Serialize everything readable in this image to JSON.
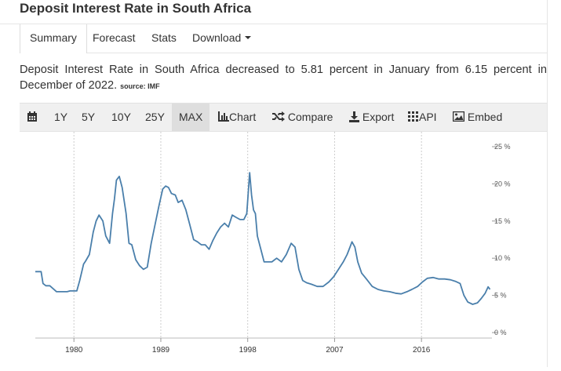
{
  "page": {
    "title": "Deposit Interest Rate in South Africa"
  },
  "tabs": [
    {
      "label": "Summary",
      "active": true
    },
    {
      "label": "Forecast",
      "active": false
    },
    {
      "label": "Stats",
      "active": false
    },
    {
      "label": "Download",
      "active": false
    }
  ],
  "summary": {
    "text": "Deposit Interest Rate in South Africa decreased to 5.81 percent in January from 6.15 percent in December of 2022.",
    "source": "source: IMF"
  },
  "toolbar": {
    "ranges": [
      "1Y",
      "5Y",
      "10Y",
      "25Y",
      "MAX"
    ],
    "active_range": "MAX",
    "chart_label": "Chart",
    "compare_label": "Compare",
    "export_label": "Export",
    "api_label": "API",
    "embed_label": "Embed"
  },
  "icons": [
    "calendar-icon",
    "bar-chart-icon",
    "shuffle-icon",
    "download-icon",
    "grid-icon",
    "image-icon"
  ],
  "colors": {
    "line": "#4a7fab",
    "toolbar_bg": "#f0f0f0",
    "active_bg": "#dedede",
    "grid": "#cccccc"
  },
  "chart_data": {
    "type": "line",
    "title": "",
    "xlabel": "",
    "ylabel": "",
    "ylim": [
      0,
      25
    ],
    "xlim": [
      1976.0,
      2023.3
    ],
    "y_ticks": [
      "25 %",
      "20 %",
      "15 %",
      "10 %",
      "5 %",
      "0 %"
    ],
    "x_ticks": [
      "1980",
      "1989",
      "1998",
      "2007",
      "2016"
    ],
    "grid": "vertical lines at x ticks",
    "series": [
      {
        "x": [
          1976.0,
          1976.6,
          1976.8,
          1977.1,
          1977.5,
          1978.2,
          1978.6,
          1979.3,
          1979.6,
          1980.0,
          1980.3,
          1980.6,
          1981.0,
          1981.2,
          1981.6,
          1982.0,
          1982.3,
          1982.6,
          1983.0,
          1983.3,
          1983.7,
          1984.0,
          1984.2,
          1984.4,
          1984.7,
          1985.0,
          1985.4,
          1985.7,
          1986.0,
          1986.4,
          1986.8,
          1987.2,
          1987.6,
          1988.0,
          1988.4,
          1988.8,
          1989.2,
          1989.5,
          1989.8,
          1990.1,
          1990.5,
          1990.8,
          1991.2,
          1991.6,
          1992.0,
          1992.4,
          1992.8,
          1993.2,
          1993.6,
          1994.0,
          1994.4,
          1994.8,
          1995.2,
          1995.6,
          1996.0,
          1996.4,
          1996.8,
          1997.2,
          1997.6,
          1997.9,
          1998.2,
          1998.4,
          1998.6,
          1998.8,
          1999.0,
          1999.3,
          1999.7,
          2000.1,
          2000.5,
          2001.0,
          2001.5,
          2002.0,
          2002.5,
          2002.9,
          2003.3,
          2003.7,
          2004.1,
          2004.6,
          2005.2,
          2005.8,
          2006.4,
          2006.9,
          2007.4,
          2007.9,
          2008.3,
          2008.6,
          2008.8,
          2009.1,
          2009.4,
          2009.8,
          2010.3,
          2010.9,
          2011.5,
          2012.1,
          2012.7,
          2013.3,
          2013.9,
          2014.5,
          2015.0,
          2015.6,
          2016.1,
          2016.6,
          2017.2,
          2017.8,
          2018.4,
          2019.0,
          2019.5,
          2020.0,
          2020.4,
          2020.8,
          2021.3,
          2021.8,
          2022.2,
          2022.6,
          2022.9,
          2023.1
        ],
        "y": [
          8.2,
          8.2,
          6.6,
          6.3,
          6.3,
          5.5,
          5.5,
          5.5,
          5.6,
          5.6,
          5.6,
          7.0,
          9.2,
          9.6,
          10.5,
          13.5,
          15.0,
          15.8,
          15.0,
          13.0,
          12.0,
          16.0,
          18.0,
          20.5,
          21.0,
          19.5,
          16.0,
          12.0,
          11.8,
          9.8,
          9.0,
          8.5,
          8.8,
          12.0,
          14.5,
          17.0,
          19.3,
          19.7,
          19.5,
          18.7,
          18.5,
          17.5,
          17.8,
          16.5,
          14.5,
          12.5,
          12.2,
          11.8,
          11.8,
          11.2,
          12.4,
          13.4,
          14.2,
          14.7,
          14.2,
          15.8,
          15.5,
          15.2,
          15.2,
          16.0,
          21.5,
          18.5,
          16.5,
          16.0,
          13.0,
          11.5,
          9.5,
          9.5,
          9.5,
          10.0,
          9.5,
          10.5,
          12.0,
          11.5,
          8.5,
          7.0,
          6.7,
          6.5,
          6.2,
          6.2,
          6.8,
          7.5,
          8.5,
          9.5,
          10.5,
          11.5,
          12.2,
          11.5,
          9.5,
          8.0,
          7.2,
          6.2,
          5.8,
          5.6,
          5.5,
          5.3,
          5.2,
          5.5,
          5.8,
          6.2,
          6.8,
          7.3,
          7.4,
          7.2,
          7.2,
          7.1,
          6.9,
          6.6,
          5.0,
          4.1,
          3.8,
          4.0,
          4.6,
          5.3,
          6.15,
          5.81
        ]
      }
    ]
  }
}
